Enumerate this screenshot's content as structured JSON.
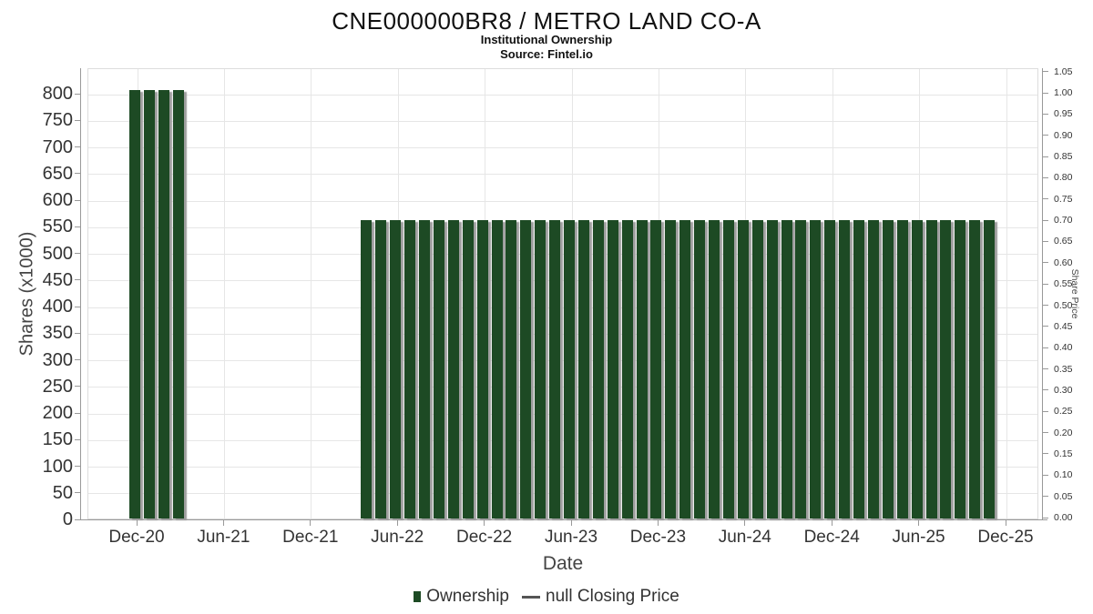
{
  "chart_data": {
    "type": "bar",
    "title": "CNE000000BR8 / METRO LAND CO-A",
    "subtitle": "Institutional Ownership",
    "source": "Source: Fintel.io",
    "xlabel": "Date",
    "ylabel": "Shares (x1000)",
    "ylabel_right": "Share Price",
    "x_ticks": [
      "Dec-20",
      "Jun-21",
      "Dec-21",
      "Jun-22",
      "Dec-22",
      "Jun-23",
      "Dec-23",
      "Jun-24",
      "Dec-24",
      "Jun-25",
      "Dec-25"
    ],
    "y_left": {
      "min": 0,
      "max": 800,
      "step": 50
    },
    "y_right": {
      "min": 0.0,
      "max": 1.05,
      "step": 0.05
    },
    "grid": true,
    "legend_position": "bottom",
    "bar_color": "#1d4a24",
    "series": [
      {
        "name": "Ownership",
        "type": "column",
        "points": [
          {
            "date": "Dec-20",
            "value": 805
          },
          {
            "date": "Jan-21",
            "value": 805
          },
          {
            "date": "Feb-21",
            "value": 805
          },
          {
            "date": "Mar-21",
            "value": 805
          },
          {
            "date": "Apr-22",
            "value": 560
          },
          {
            "date": "May-22",
            "value": 560
          },
          {
            "date": "Jun-22",
            "value": 560
          },
          {
            "date": "Jul-22",
            "value": 560
          },
          {
            "date": "Aug-22",
            "value": 560
          },
          {
            "date": "Sep-22",
            "value": 560
          },
          {
            "date": "Oct-22",
            "value": 560
          },
          {
            "date": "Nov-22",
            "value": 560
          },
          {
            "date": "Dec-22",
            "value": 560
          },
          {
            "date": "Jan-23",
            "value": 560
          },
          {
            "date": "Feb-23",
            "value": 560
          },
          {
            "date": "Mar-23",
            "value": 560
          },
          {
            "date": "Apr-23",
            "value": 560
          },
          {
            "date": "May-23",
            "value": 560
          },
          {
            "date": "Jun-23",
            "value": 560
          },
          {
            "date": "Jul-23",
            "value": 560
          },
          {
            "date": "Aug-23",
            "value": 560
          },
          {
            "date": "Sep-23",
            "value": 560
          },
          {
            "date": "Oct-23",
            "value": 560
          },
          {
            "date": "Nov-23",
            "value": 560
          },
          {
            "date": "Dec-23",
            "value": 560
          },
          {
            "date": "Jan-24",
            "value": 560
          },
          {
            "date": "Feb-24",
            "value": 560
          },
          {
            "date": "Mar-24",
            "value": 560
          },
          {
            "date": "Apr-24",
            "value": 560
          },
          {
            "date": "May-24",
            "value": 560
          },
          {
            "date": "Jun-24",
            "value": 560
          },
          {
            "date": "Jul-24",
            "value": 560
          },
          {
            "date": "Aug-24",
            "value": 560
          },
          {
            "date": "Sep-24",
            "value": 560
          },
          {
            "date": "Oct-24",
            "value": 560
          },
          {
            "date": "Nov-24",
            "value": 560
          },
          {
            "date": "Dec-24",
            "value": 560
          },
          {
            "date": "Jan-25",
            "value": 560
          },
          {
            "date": "Feb-25",
            "value": 560
          },
          {
            "date": "Mar-25",
            "value": 560
          },
          {
            "date": "Apr-25",
            "value": 560
          },
          {
            "date": "May-25",
            "value": 560
          },
          {
            "date": "Jun-25",
            "value": 560
          },
          {
            "date": "Jul-25",
            "value": 560
          },
          {
            "date": "Aug-25",
            "value": 560
          },
          {
            "date": "Sep-25",
            "value": 560
          },
          {
            "date": "Oct-25",
            "value": 560
          },
          {
            "date": "Nov-25",
            "value": 560
          }
        ]
      },
      {
        "name": "null Closing Price",
        "type": "line",
        "points": []
      }
    ]
  }
}
